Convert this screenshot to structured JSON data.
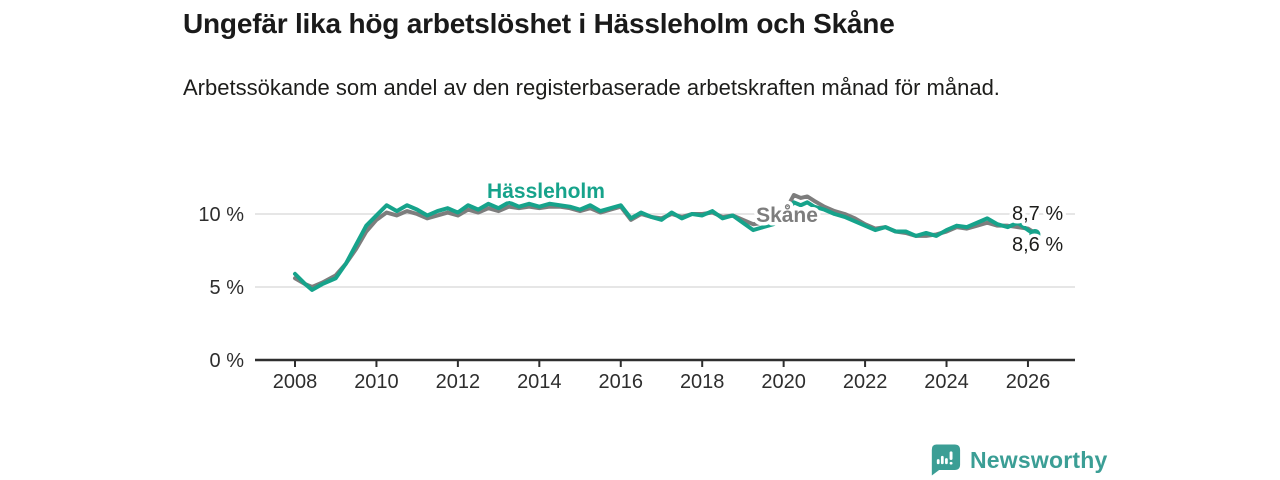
{
  "header": {
    "title": "Ungefär lika hög arbetslöshet i Hässleholm och Skåne",
    "subtitle": "Arbetssökande som andel av den registerbaserade arbetskraften månad för månad."
  },
  "footer": {
    "brand": "Newsworthy",
    "brand_color": "#3b9e95",
    "icon": "newsworthy-speech-bubble-bars-icon"
  },
  "colors": {
    "hassleholm_line": "#16a38b",
    "skane_line": "#7d7d7d",
    "axis": "#2e2e2e",
    "gridline": "#d8d8d8",
    "text": "#1d1d1b"
  },
  "chart_data": {
    "type": "line",
    "title": "Ungefär lika hög arbetslöshet i Hässleholm och Skåne",
    "subtitle": "Arbetssökande som andel av den registerbaserade arbetskraften månad för månad.",
    "xlabel": "",
    "ylabel": "",
    "unit": "%",
    "grid": "horizontal",
    "legend_position": "inline-labels",
    "xlim": [
      2007.5,
      2027.2
    ],
    "ylim": [
      0,
      12
    ],
    "yticks": [
      {
        "value": 10,
        "label": "10 %"
      },
      {
        "value": 5,
        "label": "5 %"
      },
      {
        "value": 0,
        "label": "0 %"
      }
    ],
    "xticks": [
      {
        "value": 2008,
        "label": "2008"
      },
      {
        "value": 2010,
        "label": "2010"
      },
      {
        "value": 2012,
        "label": "2012"
      },
      {
        "value": 2014,
        "label": "2014"
      },
      {
        "value": 2016,
        "label": "2016"
      },
      {
        "value": 2018,
        "label": "2018"
      },
      {
        "value": 2020,
        "label": "2020"
      },
      {
        "value": 2022,
        "label": "2022"
      },
      {
        "value": 2024,
        "label": "2024"
      },
      {
        "value": 2026,
        "label": "2026"
      }
    ],
    "x": [
      2008.0,
      2008.25,
      2008.42,
      2008.67,
      2009.0,
      2009.25,
      2009.5,
      2009.75,
      2010.0,
      2010.25,
      2010.5,
      2010.75,
      2011.0,
      2011.25,
      2011.5,
      2011.75,
      2012.0,
      2012.25,
      2012.5,
      2012.75,
      2013.0,
      2013.25,
      2013.5,
      2013.75,
      2014.0,
      2014.25,
      2014.5,
      2014.75,
      2015.0,
      2015.25,
      2015.5,
      2015.75,
      2016.0,
      2016.25,
      2016.5,
      2016.75,
      2017.0,
      2017.25,
      2017.5,
      2017.75,
      2018.0,
      2018.25,
      2018.5,
      2018.75,
      2019.0,
      2019.25,
      2019.5,
      2019.75,
      2020.0,
      2020.25,
      2020.42,
      2020.58,
      2020.75,
      2021.0,
      2021.25,
      2021.5,
      2021.75,
      2022.0,
      2022.25,
      2022.5,
      2022.75,
      2023.0,
      2023.25,
      2023.5,
      2023.75,
      2024.0,
      2024.25,
      2024.5,
      2024.75,
      2025.0,
      2025.25,
      2025.5,
      2025.75,
      2026.0,
      2026.17
    ],
    "series": [
      {
        "name": "Skåne",
        "color": "#7d7d7d",
        "label_text": "Skåne",
        "end_value_label": "8,7 %",
        "values": [
          5.6,
          5.2,
          5.0,
          5.3,
          5.8,
          6.6,
          7.6,
          8.8,
          9.6,
          10.1,
          9.9,
          10.2,
          10.0,
          9.7,
          9.9,
          10.1,
          9.9,
          10.3,
          10.1,
          10.4,
          10.2,
          10.5,
          10.4,
          10.5,
          10.4,
          10.5,
          10.5,
          10.4,
          10.2,
          10.4,
          10.1,
          10.3,
          10.5,
          9.6,
          10.0,
          9.8,
          9.7,
          10.0,
          9.8,
          10.0,
          10.0,
          10.1,
          9.8,
          9.9,
          9.6,
          9.3,
          9.4,
          9.6,
          10.0,
          11.3,
          11.1,
          11.2,
          10.9,
          10.5,
          10.2,
          10.0,
          9.7,
          9.3,
          9.0,
          9.1,
          8.8,
          8.7,
          8.5,
          8.5,
          8.6,
          8.8,
          9.1,
          9.0,
          9.2,
          9.4,
          9.2,
          9.2,
          9.1,
          9.0,
          8.7
        ]
      },
      {
        "name": "Hässleholm",
        "color": "#16a38b",
        "label_text": "Hässleholm",
        "end_value_label": "8,6 %",
        "end_dot": true,
        "values": [
          5.9,
          5.2,
          4.8,
          5.2,
          5.6,
          6.6,
          7.9,
          9.2,
          9.9,
          10.6,
          10.2,
          10.6,
          10.3,
          9.9,
          10.2,
          10.4,
          10.1,
          10.6,
          10.3,
          10.7,
          10.4,
          10.8,
          10.5,
          10.7,
          10.5,
          10.7,
          10.6,
          10.5,
          10.3,
          10.6,
          10.2,
          10.4,
          10.6,
          9.7,
          10.1,
          9.8,
          9.6,
          10.1,
          9.7,
          10.0,
          9.9,
          10.2,
          9.7,
          9.9,
          9.4,
          8.9,
          9.1,
          9.3,
          9.8,
          10.8,
          10.6,
          10.8,
          10.5,
          10.3,
          10.0,
          9.8,
          9.5,
          9.2,
          8.9,
          9.1,
          8.8,
          8.8,
          8.5,
          8.7,
          8.5,
          8.9,
          9.2,
          9.1,
          9.4,
          9.7,
          9.3,
          9.1,
          9.4,
          8.9,
          8.6
        ]
      }
    ]
  }
}
